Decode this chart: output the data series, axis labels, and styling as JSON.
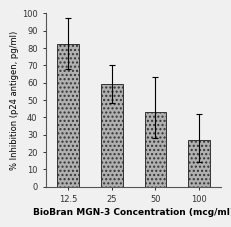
{
  "categories": [
    "12.5",
    "25",
    "50",
    "100"
  ],
  "values": [
    82,
    59,
    43,
    27
  ],
  "yerr_upper": [
    15,
    11,
    20,
    15
  ],
  "yerr_lower": [
    14,
    11,
    15,
    13
  ],
  "bar_color": "#b0b0b0",
  "bar_edgecolor": "#333333",
  "xlabel": "BioBran MGN-3 Concentration (mcg/ml)",
  "ylabel": "% Inhibition (p24 antigen, pg/ml)",
  "ylim": [
    0,
    100
  ],
  "yticks": [
    0,
    10,
    20,
    30,
    40,
    50,
    60,
    70,
    80,
    90,
    100
  ],
  "xlabel_fontsize": 6.5,
  "ylabel_fontsize": 6,
  "tick_fontsize": 6,
  "bar_width": 0.5,
  "background_color": "#f0f0f0"
}
